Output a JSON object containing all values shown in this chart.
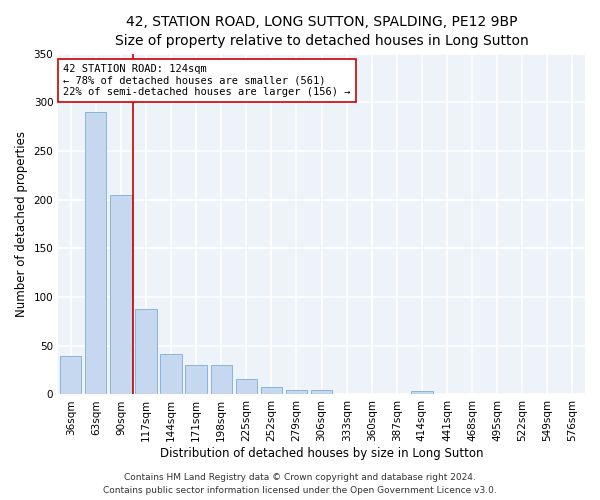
{
  "title_line1": "42, STATION ROAD, LONG SUTTON, SPALDING, PE12 9BP",
  "title_line2": "Size of property relative to detached houses in Long Sutton",
  "xlabel": "Distribution of detached houses by size in Long Sutton",
  "ylabel": "Number of detached properties",
  "categories": [
    "36sqm",
    "63sqm",
    "90sqm",
    "117sqm",
    "144sqm",
    "171sqm",
    "198sqm",
    "225sqm",
    "252sqm",
    "279sqm",
    "306sqm",
    "333sqm",
    "360sqm",
    "387sqm",
    "414sqm",
    "441sqm",
    "468sqm",
    "495sqm",
    "522sqm",
    "549sqm",
    "576sqm"
  ],
  "values": [
    40,
    290,
    205,
    88,
    42,
    30,
    30,
    16,
    8,
    5,
    5,
    0,
    0,
    0,
    4,
    0,
    0,
    0,
    0,
    0,
    0
  ],
  "bar_color": "#c5d8f0",
  "bar_edge_color": "#7bafd4",
  "vline_x": 2.5,
  "vline_color": "#cc0000",
  "annotation_text": "42 STATION ROAD: 124sqm\n← 78% of detached houses are smaller (561)\n22% of semi-detached houses are larger (156) →",
  "annotation_box_color": "#ffffff",
  "annotation_box_edge": "#cc0000",
  "ylim": [
    0,
    350
  ],
  "yticks": [
    0,
    50,
    100,
    150,
    200,
    250,
    300,
    350
  ],
  "background_color": "#eef2f9",
  "grid_color": "#ffffff",
  "footer_line1": "Contains HM Land Registry data © Crown copyright and database right 2024.",
  "footer_line2": "Contains public sector information licensed under the Open Government Licence v3.0.",
  "fig_width": 6.0,
  "fig_height": 5.0,
  "fig_dpi": 100,
  "title_fontsize": 10,
  "subtitle_fontsize": 9,
  "axis_label_fontsize": 8.5,
  "tick_fontsize": 7.5,
  "annotation_fontsize": 7.5,
  "footer_fontsize": 6.5
}
